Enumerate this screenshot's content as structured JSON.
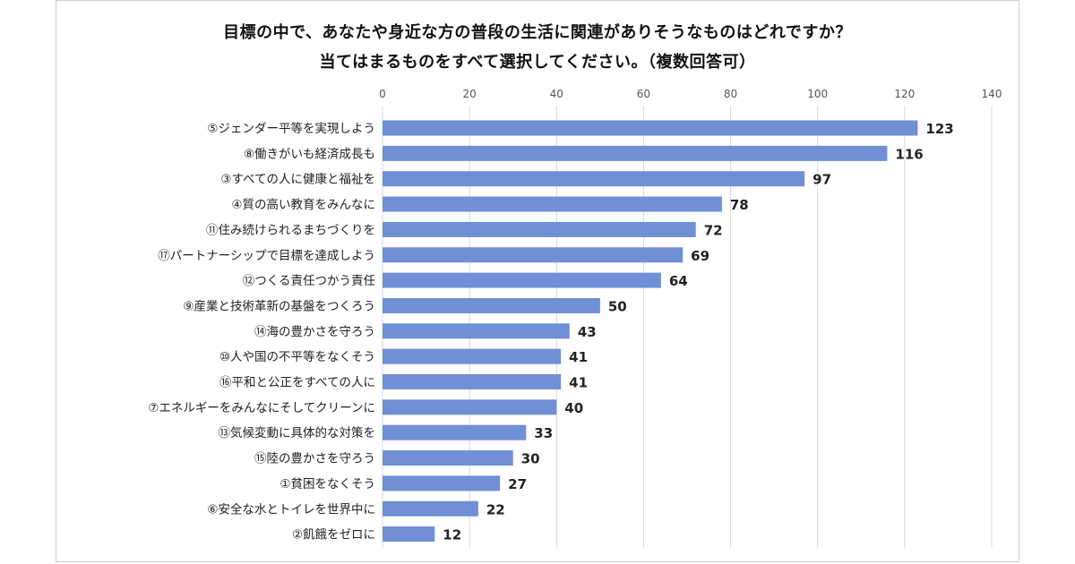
{
  "chart_data": {
    "type": "bar",
    "orientation": "horizontal",
    "title": "目標の中で、あなたや身近な方の普段の生活に関連がありそうなものはどれですか？",
    "subtitle": "当てはまるものをすべて選択してください。（複数回答可）",
    "categories": [
      "⑤ジェンダー平等を実現しよう",
      "⑧働きがいも経済成長も",
      "③すべての人に健康と福祉を",
      "④質の高い教育をみんなに",
      "⑪住み続けられるまちづくりを",
      "⑰パートナーシップで目標を達成しよう",
      "⑫つくる責任つかう責任",
      "⑨産業と技術革新の基盤をつくろう",
      "⑭海の豊かさを守ろう",
      "⑩人や国の不平等をなくそう",
      "⑯平和と公正をすべての人に",
      "⑦エネルギーをみんなにそしてクリーンに",
      "⑬気候変動に具体的な対策を",
      "⑮陸の豊かさを守ろう",
      "①貧困をなくそう",
      "⑥安全な水とトイレを世界中に",
      "②飢餓をゼロに"
    ],
    "values": [
      123,
      116,
      97,
      78,
      72,
      69,
      64,
      50,
      43,
      41,
      41,
      40,
      33,
      30,
      27,
      22,
      12
    ],
    "xticks": [
      0,
      20,
      40,
      60,
      80,
      100,
      120,
      140
    ],
    "xlim": [
      0,
      140
    ],
    "xaxis_position": "top",
    "grid": true,
    "legend": "none",
    "bar_color": "#6f8fd6"
  }
}
